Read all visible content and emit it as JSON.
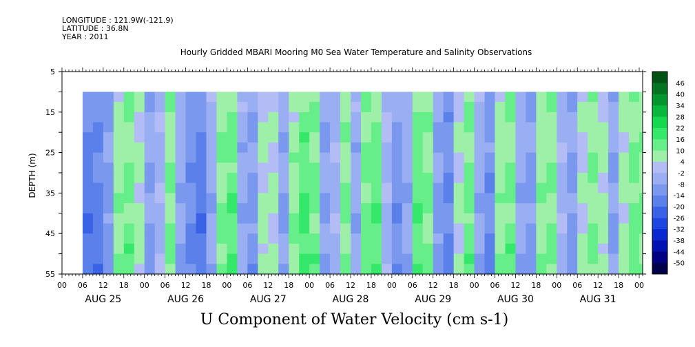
{
  "meta": {
    "longitude": "LONGITUDE : 121.9W(-121.9)",
    "latitude": "LATITUDE : 36.8N",
    "year": "YEAR : 2011"
  },
  "title": "Hourly Gridded MBARI Mooring M0 Sea Water Temperature and Salinity Observations",
  "bottom_title": "U Component of Water Velocity (cm s-1)",
  "chart_data": {
    "type": "heatmap",
    "title": "Hourly Gridded MBARI Mooring M0 Sea Water Temperature and Salinity Observations",
    "variable": "U Component of Water Velocity (cm s-1)",
    "ylabel": "DEPTH (m)",
    "ylim": [
      55,
      5
    ],
    "yticks": [
      5,
      15,
      25,
      35,
      45,
      55
    ],
    "y_data_range": [
      10,
      55
    ],
    "x_hours_range": [
      0,
      169
    ],
    "x_data_start_hour": 6,
    "x_tick_labels": [
      "00",
      "06",
      "12",
      "18",
      "00",
      "06",
      "12",
      "18",
      "00",
      "06",
      "12",
      "18",
      "00",
      "06",
      "12",
      "18",
      "00",
      "06",
      "12",
      "18",
      "00",
      "06",
      "12",
      "18",
      "00",
      "06",
      "12",
      "18",
      "00"
    ],
    "x_day_labels": [
      "AUG 25",
      "AUG 26",
      "AUG 27",
      "AUG 28",
      "AUG 29",
      "AUG 30",
      "AUG 31"
    ],
    "colorbar": {
      "levels": [
        -50,
        -44,
        -38,
        -32,
        -26,
        -20,
        -14,
        -8,
        -2,
        4,
        10,
        16,
        22,
        28,
        34,
        40,
        46
      ],
      "tick_labels": [
        "46",
        "40",
        "34",
        "28",
        "22",
        "16",
        "10",
        "4",
        "-2",
        "-8",
        "-14",
        "-20",
        "-26",
        "-32",
        "-38",
        "-44",
        "-50"
      ],
      "colors": [
        "#00004a",
        "#000080",
        "#0012b0",
        "#0a28d0",
        "#1e46e0",
        "#3a62e6",
        "#5a80ea",
        "#7a98ee",
        "#9aaef2",
        "#b4bcf6",
        "#9ef0a8",
        "#66ee88",
        "#36e86a",
        "#14d84e",
        "#08b83c",
        "#05952e",
        "#037420",
        "#025414"
      ]
    },
    "velocity_profile_hourly": [
      {
        "hour": 6,
        "u": -18
      },
      {
        "hour": 9,
        "u": -16
      },
      {
        "hour": 12,
        "u": -10
      },
      {
        "hour": 15,
        "u": 8
      },
      {
        "hour": 18,
        "u": 12
      },
      {
        "hour": 21,
        "u": 6
      },
      {
        "hour": 24,
        "u": -8
      },
      {
        "hour": 27,
        "u": -4
      },
      {
        "hour": 30,
        "u": 10
      },
      {
        "hour": 33,
        "u": -6
      },
      {
        "hour": 36,
        "u": -14
      },
      {
        "hour": 39,
        "u": -18
      },
      {
        "hour": 42,
        "u": -6
      },
      {
        "hour": 45,
        "u": 10
      },
      {
        "hour": 48,
        "u": 14
      },
      {
        "hour": 51,
        "u": -6
      },
      {
        "hour": 54,
        "u": -10
      },
      {
        "hour": 57,
        "u": 6
      },
      {
        "hour": 60,
        "u": 4
      },
      {
        "hour": 63,
        "u": -8
      },
      {
        "hour": 66,
        "u": 8
      },
      {
        "hour": 69,
        "u": 16
      },
      {
        "hour": 72,
        "u": 12
      },
      {
        "hour": 75,
        "u": -8
      },
      {
        "hour": 78,
        "u": -4
      },
      {
        "hour": 81,
        "u": 10
      },
      {
        "hour": 84,
        "u": -6
      },
      {
        "hour": 87,
        "u": 12
      },
      {
        "hour": 90,
        "u": 14
      },
      {
        "hour": 93,
        "u": -4
      },
      {
        "hour": 96,
        "u": -12
      },
      {
        "hour": 99,
        "u": -6
      },
      {
        "hour": 102,
        "u": 14
      },
      {
        "hour": 105,
        "u": 10
      },
      {
        "hour": 108,
        "u": -10
      },
      {
        "hour": 111,
        "u": -14
      },
      {
        "hour": 114,
        "u": 4
      },
      {
        "hour": 117,
        "u": 12
      },
      {
        "hour": 120,
        "u": -6
      },
      {
        "hour": 123,
        "u": -12
      },
      {
        "hour": 126,
        "u": 8
      },
      {
        "hour": 129,
        "u": 12
      },
      {
        "hour": 132,
        "u": -6
      },
      {
        "hour": 135,
        "u": -10
      },
      {
        "hour": 138,
        "u": 8
      },
      {
        "hour": 141,
        "u": 10
      },
      {
        "hour": 144,
        "u": -4
      },
      {
        "hour": 147,
        "u": -10
      },
      {
        "hour": 150,
        "u": 4
      },
      {
        "hour": 153,
        "u": 10
      },
      {
        "hour": 156,
        "u": 6
      },
      {
        "hour": 159,
        "u": -8
      },
      {
        "hour": 162,
        "u": 6
      },
      {
        "hour": 165,
        "u": 12
      },
      {
        "hour": 168,
        "u": 10
      }
    ]
  }
}
